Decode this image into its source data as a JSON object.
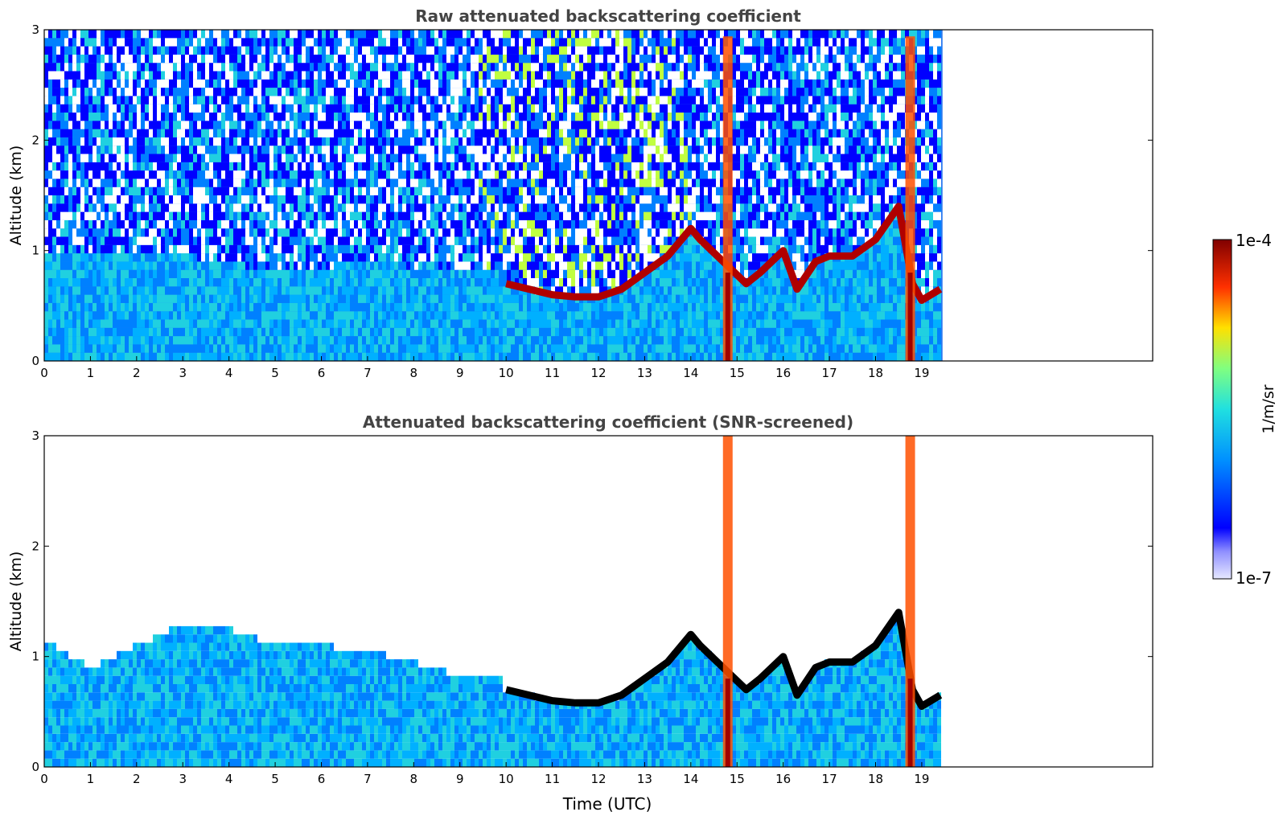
{
  "colorbar": {
    "max_label": "1e-4",
    "min_label": "1e-7",
    "unit_label": "1/m/sr",
    "scale": "log",
    "colormap": "jet"
  },
  "chart_data": [
    {
      "type": "heatmap",
      "title": "Raw attenuated backscattering coefficient",
      "xlabel": "",
      "ylabel": "Altitude (km)",
      "xlim": [
        0,
        24
      ],
      "ylim": [
        0,
        3
      ],
      "xticks": [
        "0",
        "1",
        "2",
        "3",
        "4",
        "5",
        "6",
        "7",
        "8",
        "9",
        "10",
        "11",
        "12",
        "13",
        "14",
        "15",
        "16",
        "17",
        "18",
        "19"
      ],
      "yticks": [
        "0",
        "1",
        "2",
        "3"
      ],
      "data_end_time": 19.45,
      "boundary_layer_top_km": {
        "time": [
          0,
          1,
          2,
          3,
          4,
          5,
          6,
          7,
          8,
          8.8
        ],
        "altitude": [
          1.0,
          0.95,
          1.0,
          0.95,
          0.9,
          0.8,
          0.85,
          0.9,
          0.85,
          0.8
        ]
      },
      "cloud_base_km": {
        "time": [
          10.0,
          10.5,
          11,
          11.5,
          12,
          12.5,
          13,
          13.5,
          14,
          14.2,
          15.2,
          15.5,
          16,
          16.3,
          16.7,
          17,
          17.5,
          18,
          18.5,
          18.8,
          19,
          19.4
        ],
        "altitude": [
          0.7,
          0.65,
          0.6,
          0.58,
          0.58,
          0.65,
          0.8,
          0.95,
          1.2,
          1.1,
          0.7,
          0.8,
          1.0,
          0.65,
          0.9,
          0.95,
          0.95,
          1.1,
          1.4,
          0.7,
          0.55,
          0.65
        ]
      },
      "precipitation_time": [
        14.8,
        18.75
      ],
      "noise_free": false
    },
    {
      "type": "heatmap",
      "title": "Attenuated backscattering coefficient (SNR-screened)",
      "xlabel": "Time (UTC)",
      "ylabel": "Altitude (km)",
      "xlim": [
        0,
        24
      ],
      "ylim": [
        0,
        3
      ],
      "xticks": [
        "0",
        "1",
        "2",
        "3",
        "4",
        "5",
        "6",
        "7",
        "8",
        "9",
        "10",
        "11",
        "12",
        "13",
        "14",
        "15",
        "16",
        "17",
        "18",
        "19"
      ],
      "yticks": [
        "0",
        "1",
        "2",
        "3"
      ],
      "data_end_time": 19.45,
      "boundary_layer_top_km": {
        "time": [
          0,
          1,
          2,
          3,
          4,
          5,
          6,
          7,
          8,
          8.8
        ],
        "altitude": [
          1.15,
          0.9,
          1.1,
          1.3,
          1.25,
          1.1,
          1.1,
          1.05,
          0.95,
          0.85
        ]
      },
      "cloud_base_km": {
        "time": [
          10.0,
          10.5,
          11,
          11.5,
          12,
          12.5,
          13,
          13.5,
          14,
          14.2,
          15.2,
          15.5,
          16,
          16.3,
          16.7,
          17,
          17.5,
          18,
          18.5,
          18.8,
          19,
          19.4
        ],
        "altitude": [
          0.7,
          0.65,
          0.6,
          0.58,
          0.58,
          0.65,
          0.8,
          0.95,
          1.2,
          1.1,
          0.7,
          0.8,
          1.0,
          0.65,
          0.9,
          0.95,
          0.95,
          1.1,
          1.4,
          0.7,
          0.55,
          0.65
        ]
      },
      "precipitation_time": [
        14.8,
        18.75
      ],
      "noise_free": true
    }
  ]
}
